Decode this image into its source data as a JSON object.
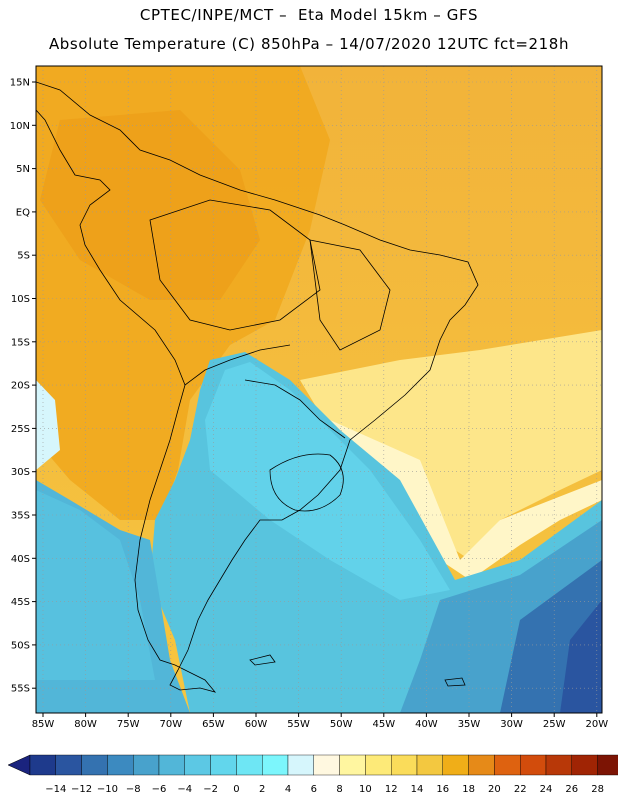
{
  "header": {
    "line1": "CPTEC/INPE/MCT –  Eta Model 15km – GFS",
    "line2": "Absolute Temperature (C) 850hPa – 14/07/2020 12UTC fct=218h"
  },
  "map": {
    "lat_labels": [
      "15N",
      "10N",
      "5N",
      "EQ",
      "5S",
      "10S",
      "15S",
      "20S",
      "25S",
      "30S",
      "35S",
      "40S",
      "45S",
      "50S",
      "55S"
    ],
    "lon_labels": [
      "85W",
      "80W",
      "75W",
      "70W",
      "65W",
      "60W",
      "55W",
      "50W",
      "45W",
      "40W",
      "35W",
      "30W",
      "25W",
      "20W"
    ]
  },
  "colorbar": {
    "labels": [
      "-14",
      "-12",
      "-10",
      "-8",
      "-6",
      "-4",
      "-2",
      "0",
      "2",
      "4",
      "6",
      "8",
      "10",
      "12",
      "14",
      "16",
      "18",
      "20",
      "22",
      "24",
      "26",
      "28"
    ],
    "colors": [
      "#1e3a8c",
      "#2a55a0",
      "#3472b0",
      "#3c8ac0",
      "#48a2cc",
      "#52b6d8",
      "#5cc8e4",
      "#62d6ec",
      "#6ee6f4",
      "#7cf6fc",
      "#d6f6fc",
      "#fff8e0",
      "#fff6a0",
      "#fdea78",
      "#fadc5a",
      "#f3c840",
      "#f0ae18",
      "#e68a18",
      "#de6210",
      "#d24c0c",
      "#b83808",
      "#a02404",
      "#7c1404"
    ],
    "left_arrow_color": "#1a237e",
    "right_arrow_color": "#780018"
  }
}
